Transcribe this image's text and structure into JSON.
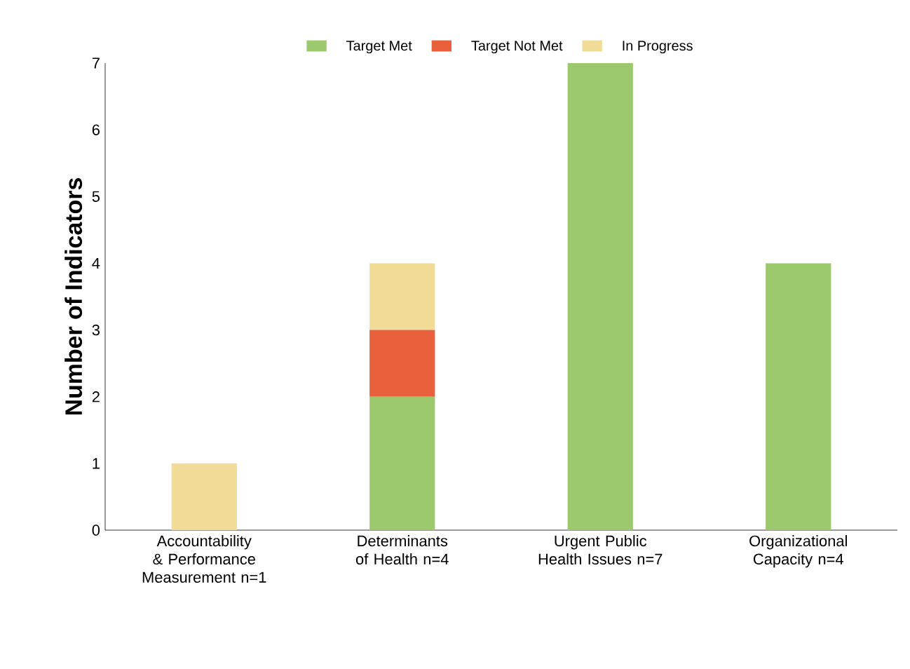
{
  "chart_data": {
    "type": "bar",
    "stacked": true,
    "ylabel": "Number of Indicators",
    "categories": [
      "Accountability & Performance Measurement n=1",
      "Determinants of Health n=4",
      "Urgent Public Health Issues n=7",
      "Organizational Capacity n=4"
    ],
    "series": [
      {
        "name": "Target Met",
        "color": "#9cc86e",
        "values": [
          0,
          2,
          7,
          4
        ]
      },
      {
        "name": "Target Not Met",
        "color": "#e8603c",
        "values": [
          0,
          1,
          0,
          0
        ]
      },
      {
        "name": "In Progress",
        "color": "#f0dc96",
        "values": [
          1,
          1,
          0,
          0
        ]
      }
    ],
    "ylim": [
      0,
      7
    ],
    "yticks": [
      0,
      1,
      2,
      3,
      4,
      5,
      6,
      7
    ],
    "grid": false,
    "legend": "top"
  }
}
